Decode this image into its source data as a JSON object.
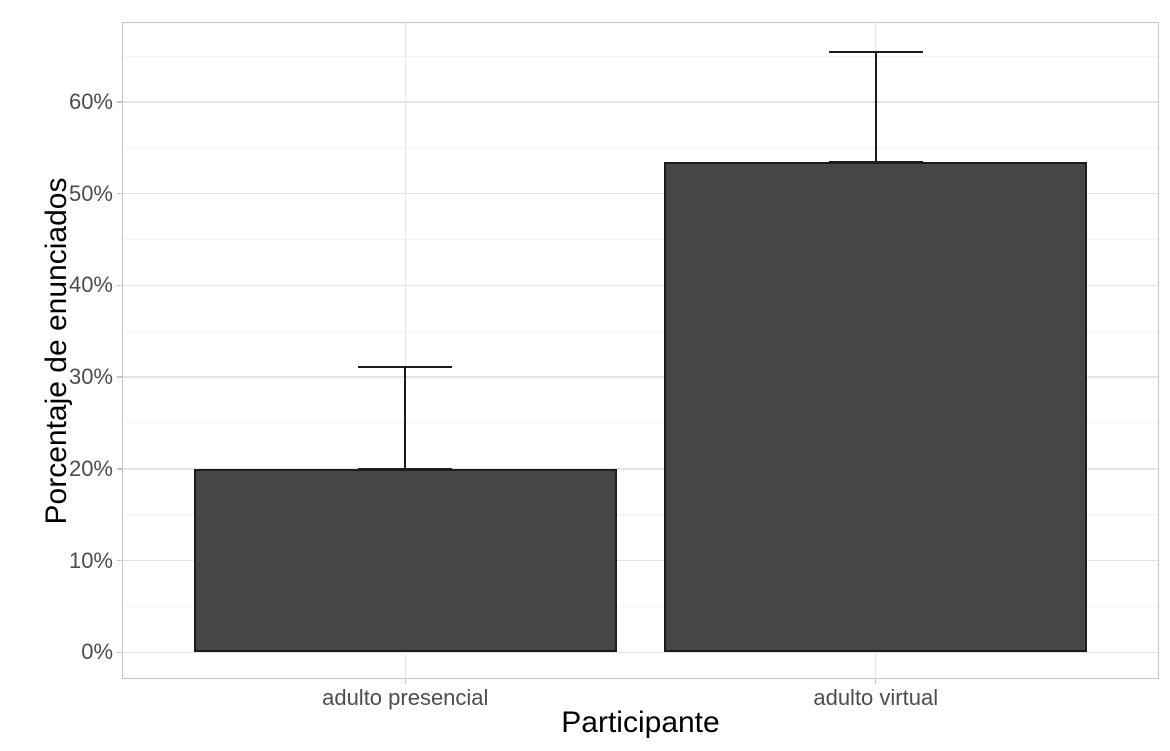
{
  "chart_data": {
    "type": "bar",
    "title": "",
    "xlabel": "Participante",
    "ylabel": "Porcentaje de enunciados",
    "categories": [
      "adulto presencial",
      "adulto virtual"
    ],
    "values": [
      20,
      53.4
    ],
    "error_upper": [
      31.1,
      65.4
    ],
    "error_lower": [
      20,
      53.4
    ],
    "y_ticks": [
      {
        "value": 0,
        "label": "0%"
      },
      {
        "value": 10,
        "label": "10%"
      },
      {
        "value": 20,
        "label": "20%"
      },
      {
        "value": 30,
        "label": "30%"
      },
      {
        "value": 40,
        "label": "40%"
      },
      {
        "value": 50,
        "label": "50%"
      },
      {
        "value": 60,
        "label": "60%"
      }
    ],
    "y_minor_ticks": [
      5,
      15,
      25,
      35,
      45,
      55,
      65
    ],
    "ylim": [
      -2.8,
      68.6
    ],
    "grid": "horizontal major+minor, vertical major at category centers",
    "legend": "none",
    "style": {
      "bar_fill": "#464646",
      "bar_border": "#1c1c1c",
      "error_color": "#1c1c1c",
      "grid_major": "#e4e4e4",
      "grid_minor": "#f2f2f2",
      "panel_border": "#c6c6c6",
      "tick_label_color": "#4d4d4d",
      "axis_title_color": "#000000",
      "background": "#ffffff"
    }
  }
}
